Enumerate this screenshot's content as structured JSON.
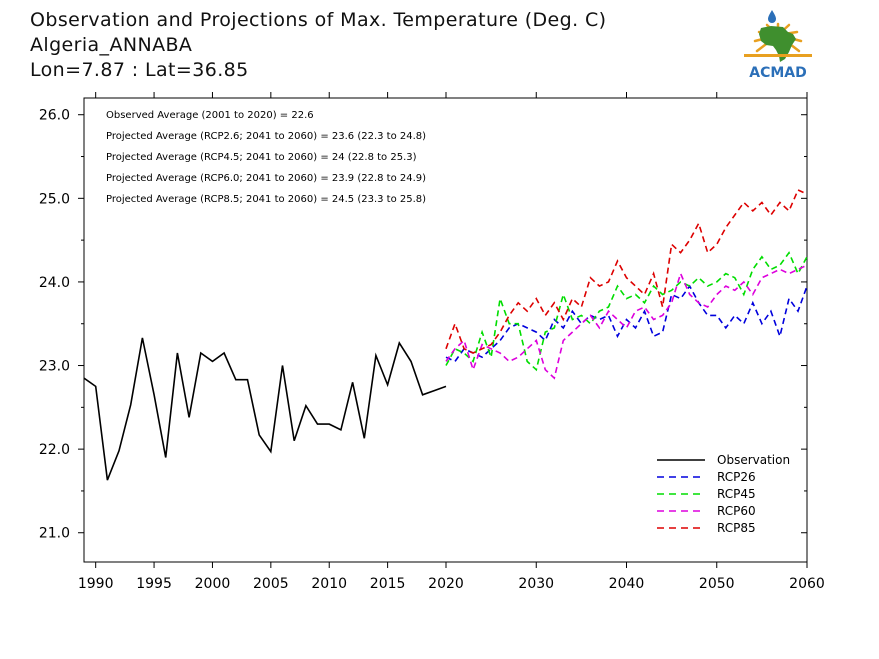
{
  "header": {
    "title": "Observation and Projections of Max. Temperature (Deg. C)",
    "location": "Algeria_ANNABA",
    "coords": "Lon=7.87 : Lat=36.85"
  },
  "logo": {
    "text": "ACMAD",
    "icon": "africa-map-logo-icon"
  },
  "colors": {
    "observation": "#000000",
    "rcp26": "#0000dd",
    "rcp45": "#00dd00",
    "rcp60": "#dd00dd",
    "rcp85": "#dd0000"
  },
  "chart_data": {
    "type": "line",
    "xlim": [
      1989,
      2060
    ],
    "ylim": [
      20.65,
      26.2
    ],
    "x_ticks_left": [
      1990,
      1995,
      2000,
      2005,
      2010,
      2015,
      2020
    ],
    "x_ticks_right": [
      2030,
      2040,
      2050,
      2060
    ],
    "x_tick_labels_left": [
      "1990",
      "1995",
      "2000",
      "2005",
      "2010",
      "2015",
      "2020"
    ],
    "x_tick_labels_right": [
      "2030",
      "2040",
      "2050",
      "2060"
    ],
    "y_ticks": [
      21.0,
      22.0,
      23.0,
      24.0,
      25.0,
      26.0
    ],
    "y_tick_labels": [
      "21.0",
      "22.0",
      "23.0",
      "24.0",
      "25.0",
      "26.0"
    ],
    "annotations": [
      "Observed Average (2001 to 2020) = 22.6",
      "Projected Average (RCP2.6; 2041 to 2060) = 23.6 (22.3 to 24.8)",
      "Projected Average (RCP4.5; 2041 to 2060) = 24 (22.8 to 25.3)",
      "Projected Average (RCP6.0; 2041 to 2060) = 23.9 (22.8 to 24.9)",
      "Projected Average (RCP8.5; 2041 to 2060) = 24.5 (23.3 to 25.8)"
    ],
    "legend": {
      "position": "bottom-right",
      "entries": [
        "Observation",
        "RCP26",
        "RCP45",
        "RCP60",
        "RCP85"
      ]
    },
    "series": [
      {
        "name": "Observation",
        "style": "solid",
        "color_key": "observation",
        "x": [
          1989,
          1990,
          1991,
          1992,
          1993,
          1994,
          1995,
          1996,
          1997,
          1998,
          1999,
          2000,
          2001,
          2002,
          2003,
          2004,
          2005,
          2006,
          2007,
          2008,
          2009,
          2010,
          2011,
          2012,
          2013,
          2014,
          2015,
          2016,
          2017,
          2018,
          2019,
          2020
        ],
        "y": [
          22.85,
          22.75,
          21.63,
          21.98,
          22.53,
          23.33,
          22.65,
          21.9,
          23.15,
          22.38,
          23.15,
          23.05,
          23.15,
          22.83,
          22.83,
          22.17,
          21.97,
          23.0,
          22.1,
          22.52,
          22.3,
          22.3,
          22.23,
          22.8,
          22.13,
          23.12,
          22.77,
          23.27,
          23.05,
          22.65,
          22.7,
          22.75
        ]
      },
      {
        "name": "RCP26",
        "style": "dashed",
        "color_key": "rcp26",
        "x": [
          2020,
          2021,
          2022,
          2023,
          2024,
          2025,
          2026,
          2027,
          2028,
          2029,
          2030,
          2031,
          2032,
          2033,
          2034,
          2035,
          2036,
          2037,
          2038,
          2039,
          2040,
          2041,
          2042,
          2043,
          2044,
          2045,
          2046,
          2047,
          2048,
          2049,
          2050,
          2051,
          2052,
          2053,
          2054,
          2055,
          2056,
          2057,
          2058,
          2059,
          2060
        ],
        "y": [
          23.1,
          23.05,
          23.2,
          23.15,
          23.1,
          23.2,
          23.3,
          23.45,
          23.5,
          23.45,
          23.4,
          23.3,
          23.55,
          23.45,
          23.65,
          23.5,
          23.6,
          23.55,
          23.6,
          23.35,
          23.55,
          23.45,
          23.65,
          23.35,
          23.4,
          23.85,
          23.8,
          23.95,
          23.75,
          23.6,
          23.6,
          23.45,
          23.6,
          23.5,
          23.75,
          23.5,
          23.65,
          23.35,
          23.8,
          23.65,
          23.95
        ]
      },
      {
        "name": "RCP45",
        "style": "dashed",
        "color_key": "rcp45",
        "x": [
          2020,
          2021,
          2022,
          2023,
          2024,
          2025,
          2026,
          2027,
          2028,
          2029,
          2030,
          2031,
          2032,
          2033,
          2034,
          2035,
          2036,
          2037,
          2038,
          2039,
          2040,
          2041,
          2042,
          2043,
          2044,
          2045,
          2046,
          2047,
          2048,
          2049,
          2050,
          2051,
          2052,
          2053,
          2054,
          2055,
          2056,
          2057,
          2058,
          2059,
          2060
        ],
        "y": [
          23.0,
          23.2,
          23.15,
          23.05,
          23.4,
          23.1,
          23.8,
          23.5,
          23.5,
          23.05,
          22.95,
          23.4,
          23.45,
          23.85,
          23.55,
          23.6,
          23.5,
          23.65,
          23.7,
          23.95,
          23.8,
          23.85,
          23.75,
          23.95,
          23.85,
          23.9,
          24.0,
          23.95,
          24.05,
          23.95,
          24.0,
          24.1,
          24.05,
          23.85,
          24.15,
          24.3,
          24.15,
          24.2,
          24.35,
          24.1,
          24.3
        ]
      },
      {
        "name": "RCP60",
        "style": "dashed",
        "color_key": "rcp60",
        "x": [
          2020,
          2021,
          2022,
          2023,
          2024,
          2025,
          2026,
          2027,
          2028,
          2029,
          2030,
          2031,
          2032,
          2033,
          2034,
          2035,
          2036,
          2037,
          2038,
          2039,
          2040,
          2041,
          2042,
          2043,
          2044,
          2045,
          2046,
          2047,
          2048,
          2049,
          2050,
          2051,
          2052,
          2053,
          2054,
          2055,
          2056,
          2057,
          2058,
          2059,
          2060
        ],
        "y": [
          23.05,
          23.2,
          23.3,
          22.95,
          23.25,
          23.2,
          23.15,
          23.05,
          23.1,
          23.2,
          23.3,
          22.95,
          22.85,
          23.3,
          23.4,
          23.5,
          23.6,
          23.45,
          23.65,
          23.55,
          23.45,
          23.65,
          23.7,
          23.55,
          23.6,
          23.75,
          24.1,
          23.85,
          23.75,
          23.7,
          23.85,
          23.95,
          23.9,
          24.0,
          23.85,
          24.05,
          24.1,
          24.15,
          24.1,
          24.15,
          24.2
        ]
      },
      {
        "name": "RCP85",
        "style": "dashed",
        "color_key": "rcp85",
        "x": [
          2020,
          2021,
          2022,
          2023,
          2024,
          2025,
          2026,
          2027,
          2028,
          2029,
          2030,
          2031,
          2032,
          2033,
          2034,
          2035,
          2036,
          2037,
          2038,
          2039,
          2040,
          2041,
          2042,
          2043,
          2044,
          2045,
          2046,
          2047,
          2048,
          2049,
          2050,
          2051,
          2052,
          2053,
          2054,
          2055,
          2056,
          2057,
          2058,
          2059,
          2060
        ],
        "y": [
          23.2,
          23.5,
          23.2,
          23.15,
          23.2,
          23.25,
          23.4,
          23.6,
          23.75,
          23.65,
          23.8,
          23.6,
          23.75,
          23.55,
          23.8,
          23.7,
          24.05,
          23.95,
          24.0,
          24.25,
          24.05,
          23.95,
          23.85,
          24.1,
          23.7,
          24.45,
          24.35,
          24.5,
          24.7,
          24.35,
          24.45,
          24.65,
          24.8,
          24.95,
          24.85,
          24.95,
          24.8,
          24.95,
          24.85,
          25.1,
          25.05
        ]
      }
    ]
  }
}
